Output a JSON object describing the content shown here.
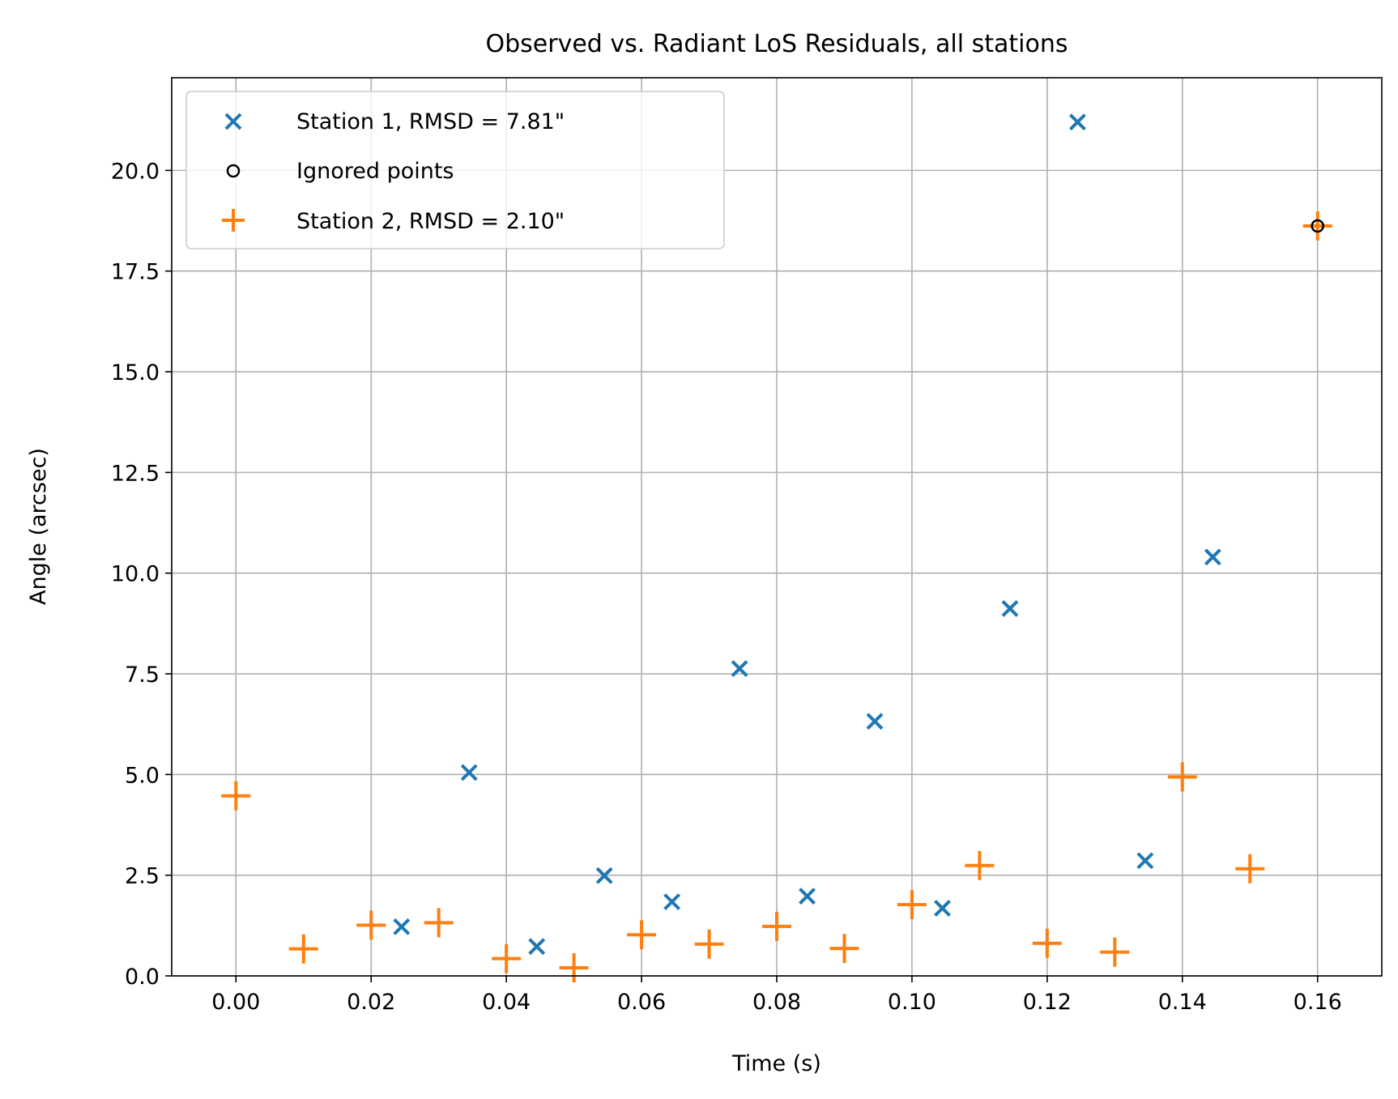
{
  "chart_data": {
    "type": "scatter",
    "title": "Observed vs. Radiant LoS Residuals, all stations",
    "xlabel": "Time (s)",
    "ylabel": "Angle (arcsec)",
    "xlim": [
      -0.0095,
      0.1695
    ],
    "ylim": [
      0.0,
      22.3
    ],
    "grid": true,
    "legend_position": "upper-left",
    "xticks": [
      0.0,
      0.02,
      0.04,
      0.06,
      0.08,
      0.1,
      0.12,
      0.14,
      0.16
    ],
    "xtick_labels": [
      "0.00",
      "0.02",
      "0.04",
      "0.06",
      "0.08",
      "0.10",
      "0.12",
      "0.14",
      "0.16"
    ],
    "yticks": [
      0.0,
      2.5,
      5.0,
      7.5,
      10.0,
      12.5,
      15.0,
      17.5,
      20.0
    ],
    "ytick_labels": [
      "0.0",
      "2.5",
      "5.0",
      "7.5",
      "10.0",
      "12.5",
      "15.0",
      "17.5",
      "20.0"
    ],
    "series": [
      {
        "name": "Station 1, RMSD = 7.81\"",
        "marker": "x",
        "color": "#1f77b4",
        "x": [
          0.0245,
          0.0345,
          0.0445,
          0.0545,
          0.0645,
          0.0745,
          0.0845,
          0.0945,
          0.1045,
          0.1145,
          0.1245,
          0.1345,
          0.1445
        ],
        "y": [
          1.22,
          5.05,
          0.73,
          2.49,
          1.84,
          7.63,
          1.98,
          6.32,
          1.68,
          9.12,
          21.2,
          2.86,
          10.4
        ]
      },
      {
        "name": "Ignored points",
        "marker": "circle-open",
        "color": "#000000",
        "x": [
          0.16
        ],
        "y": [
          18.62
        ]
      },
      {
        "name": "Station 2, RMSD = 2.10\"",
        "marker": "plus",
        "color": "#ff7f0e",
        "x": [
          0.0,
          0.01,
          0.02,
          0.03,
          0.04,
          0.05,
          0.06,
          0.07,
          0.08,
          0.09,
          0.1,
          0.11,
          0.12,
          0.13,
          0.14,
          0.15,
          0.16
        ],
        "y": [
          4.47,
          0.67,
          1.26,
          1.32,
          0.43,
          0.2,
          1.02,
          0.79,
          1.23,
          0.68,
          1.77,
          2.74,
          0.81,
          0.59,
          4.94,
          2.66,
          18.62
        ]
      }
    ]
  }
}
